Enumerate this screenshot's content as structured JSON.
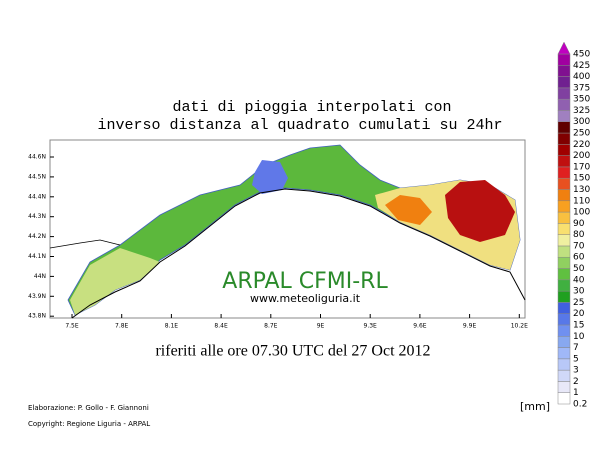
{
  "title": [
    "dati di pioggia interpolati con",
    "inverso distanza al quadrato cumulati su 24hr"
  ],
  "watermark": "ARPAL CFMI-RL",
  "website": "www.meteoliguria.it",
  "subtitle": "riferiti alle ore 07.30 UTC del 27 Oct 2012",
  "credits": [
    "Elaborazione: P. Gollo - F. Giannoni",
    "Copyright: Regione Liguria - ARPAL"
  ],
  "unit": "[mm]",
  "lat_ticks": [
    "44.6N",
    "44.5N",
    "44.4N",
    "44.3N",
    "44.2N",
    "44.1N",
    "44N",
    "43.9N",
    "43.8N"
  ],
  "lon_ticks": [
    "7.5E",
    "7.8E",
    "8.1E",
    "8.4E",
    "8.7E",
    "9E",
    "9.3E",
    "9.6E",
    "9.9E",
    "10.2E"
  ],
  "scale": {
    "labels": [
      0.2,
      1,
      2,
      3,
      5,
      7,
      10,
      15,
      20,
      25,
      30,
      40,
      50,
      60,
      70,
      80,
      90,
      100,
      110,
      130,
      150,
      170,
      200,
      220,
      250,
      300,
      325,
      350,
      375,
      400,
      425,
      450
    ],
    "colors": [
      "#ffffff",
      "#e8e8f8",
      "#d0d8f8",
      "#b8c8f8",
      "#a0b8f8",
      "#88a8f0",
      "#7090f0",
      "#5878e8",
      "#4060e0",
      "#20a020",
      "#40b040",
      "#60c040",
      "#90d060",
      "#c0e080",
      "#f0f0a0",
      "#f8e070",
      "#f8c040",
      "#f8a020",
      "#f08010",
      "#e85020",
      "#e02020",
      "#c01010",
      "#a00000",
      "#800000",
      "#600000",
      "#a080c0",
      "#9060b0",
      "#8040a0",
      "#702090",
      "#801090",
      "#a000a0",
      "#c000c0"
    ]
  }
}
